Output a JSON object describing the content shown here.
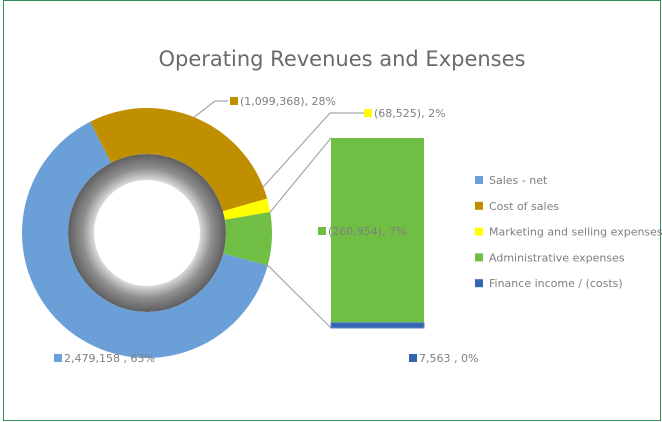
{
  "chart_data": {
    "type": "bar_of_pie",
    "title": "Operating Revenues and Expenses",
    "categories": [
      "Sales - net",
      "Cost of sales",
      "Marketing and selling expenses",
      "Administrative expenses",
      "Finance income / (costs)"
    ],
    "values": [
      2479158,
      -1099368,
      -68525,
      -260954,
      7563
    ],
    "value_labels": [
      "2,479,158 , 63%",
      "(1,099,368), 28%",
      "(68,525), 2%",
      "(260,954), 7%",
      "7,563 , 0%"
    ],
    "colors": [
      "#6a9fd8",
      "#bf8f00",
      "#ffff00",
      "#70bf44",
      "#3565b0"
    ],
    "second_plot_count": 2
  }
}
